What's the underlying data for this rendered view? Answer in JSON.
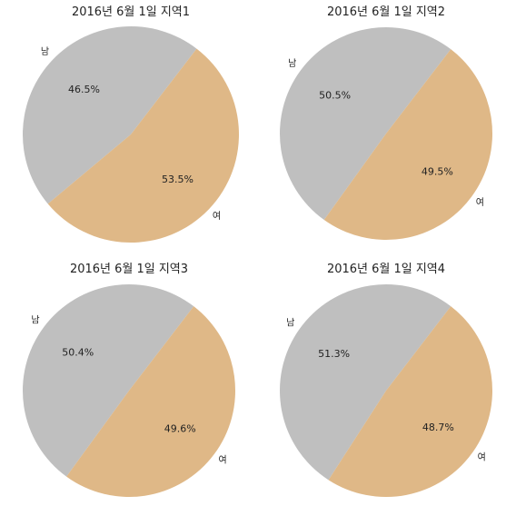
{
  "colors": {
    "male": "#bfbfbf",
    "female": "#dfb887"
  },
  "chart_data": [
    {
      "type": "pie",
      "title": "2016년 6월 1일 지역1",
      "labels": [
        "남",
        "여"
      ],
      "values": [
        46.5,
        53.5
      ],
      "value_labels": [
        "46.5%",
        "53.5%"
      ]
    },
    {
      "type": "pie",
      "title": "2016년 6월 1일 지역2",
      "labels": [
        "남",
        "여"
      ],
      "values": [
        50.5,
        49.5
      ],
      "value_labels": [
        "50.5%",
        "49.5%"
      ]
    },
    {
      "type": "pie",
      "title": "2016년 6월 1일 지역3",
      "labels": [
        "남",
        "여"
      ],
      "values": [
        50.4,
        49.6
      ],
      "value_labels": [
        "50.4%",
        "49.6%"
      ]
    },
    {
      "type": "pie",
      "title": "2016년 6월 1일 지역4",
      "labels": [
        "남",
        "여"
      ],
      "values": [
        51.3,
        48.7
      ],
      "value_labels": [
        "51.3%",
        "48.7%"
      ]
    }
  ]
}
